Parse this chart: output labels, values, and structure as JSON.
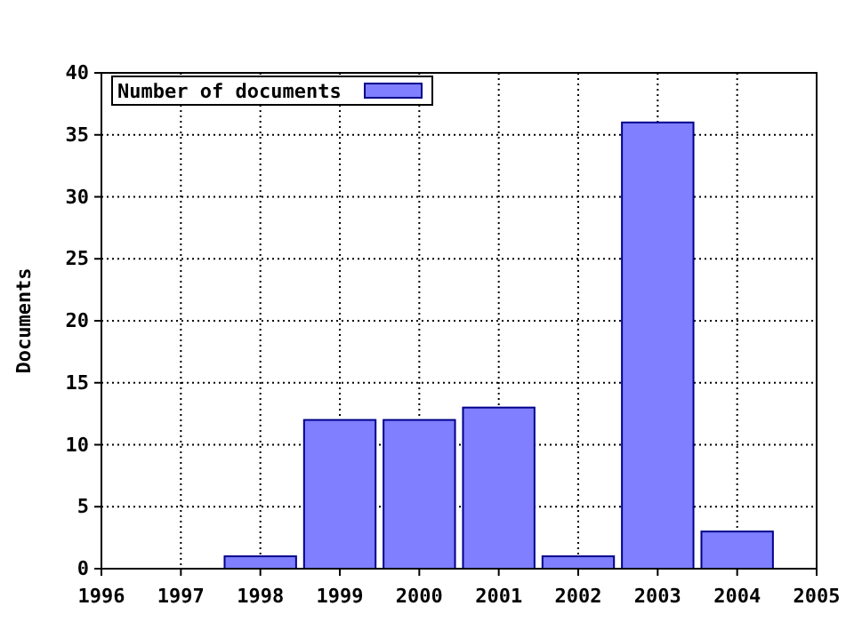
{
  "chart_data": {
    "type": "bar",
    "ylabel": "Documents",
    "x": [
      1998,
      1999,
      2000,
      2001,
      2002,
      2003,
      2004
    ],
    "series": [
      {
        "name": "Number of documents",
        "color": "#7f7fff",
        "values": [
          1,
          12,
          12,
          13,
          1,
          36,
          3
        ]
      }
    ],
    "xlim": [
      1996,
      2005
    ],
    "xticks": [
      1996,
      1997,
      1998,
      1999,
      2000,
      2001,
      2002,
      2003,
      2004,
      2005
    ],
    "ylim": [
      0,
      40
    ],
    "yticks": [
      0,
      5,
      10,
      15,
      20,
      25,
      30,
      35,
      40
    ],
    "grid": true,
    "legend": "top left"
  }
}
